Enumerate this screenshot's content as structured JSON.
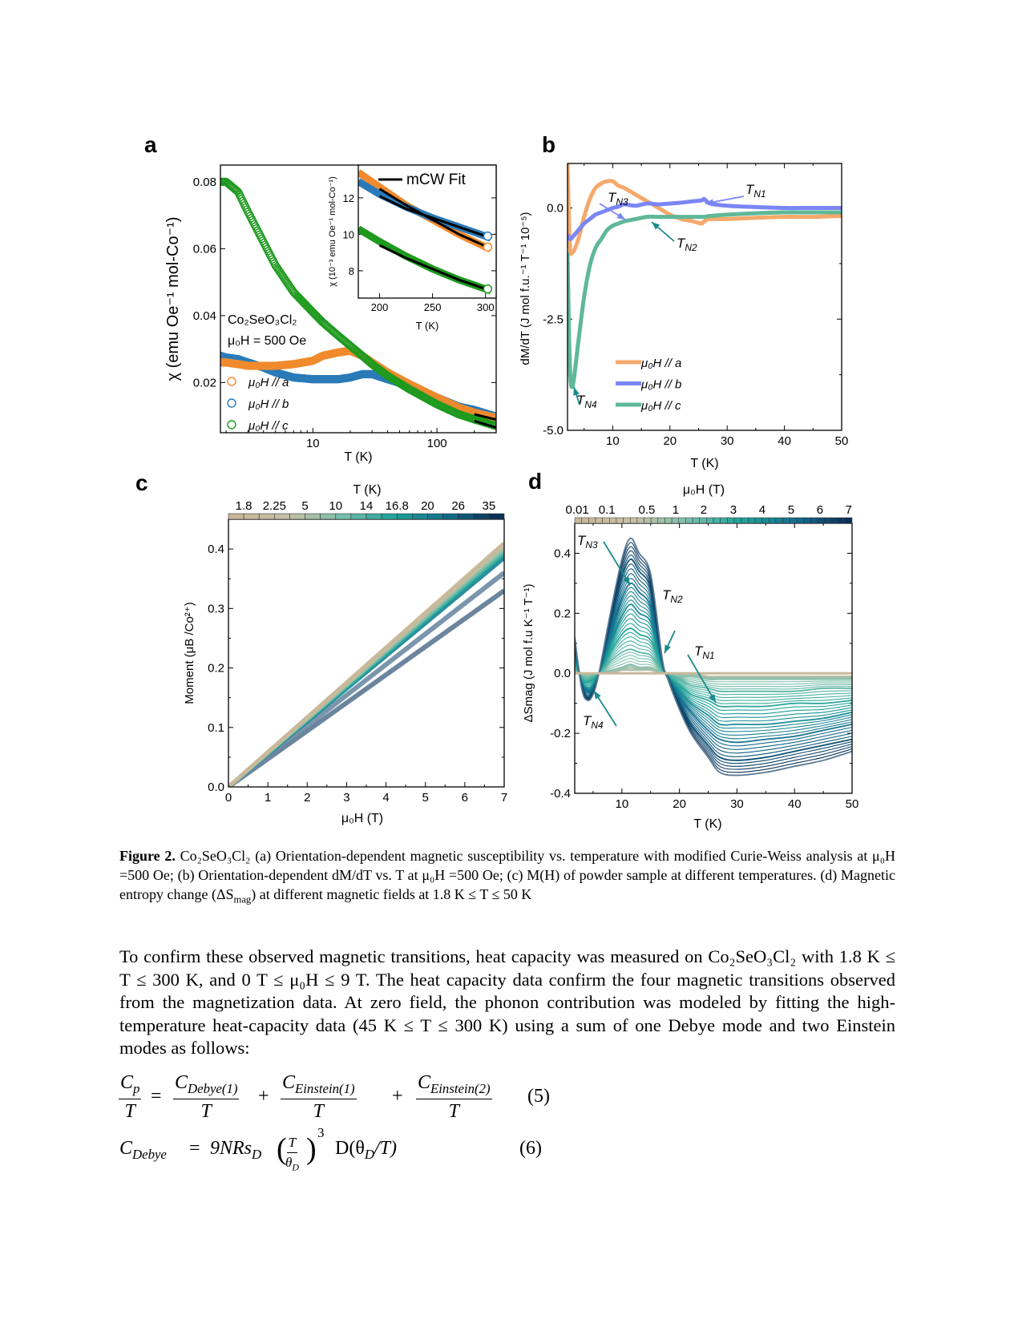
{
  "figure": {
    "panel_labels": [
      "a",
      "b",
      "c",
      "d"
    ],
    "caption": {
      "label": "Figure 2.",
      "text_1": " Co₂SeO₃Cl₂ (a) Orientation-dependent magnetic susceptibility vs. temperature with modified Curie-Weiss analysis at μ₀H =500 Oe; (b) Orientation-dependent dM/dT vs. T at μ₀H =500 Oe; (c) M(H) of powder sample at different temperatures. (d) Magnetic entropy change (ΔS",
      "sub": "mag",
      "text_2": ") at different magnetic fields at 1.8 K ≤ T ≤ 50 K"
    }
  },
  "body": {
    "paragraph": "To confirm these observed magnetic transitions, heat capacity was measured on Co₂SeO₃Cl₂ with 1.8 K ≤ T  ≤ 300 K, and 0 T ≤ μ₀H ≤ 9 T.  The heat capacity data confirm the four magnetic transitions observed from the magnetization data. At zero field, the phonon contribution was modeled by fitting the high-temperature heat-capacity data (45 K ≤ T ≤ 300 K) using a sum of one Debye mode and two Einstein modes as follows:"
  },
  "equations": {
    "eq5": {
      "lhs_num": "C",
      "lhs_num_sub": "p",
      "lhs_den": "T",
      "equals": "=",
      "t1_num": "C",
      "t1_sub": "Debye(1)",
      "t1_den": "T",
      "plus1": "+",
      "t2_num": "C",
      "t2_sub": "Einstein(1)",
      "t2_den": "T",
      "plus2": "+",
      "t3_num": "C",
      "t3_sub": "Einstein(2)",
      "t3_den": "T",
      "number": "(5)"
    },
    "eq6": {
      "lhs": "C",
      "lhs_sub": "Debye",
      "equals": "=",
      "coef": "9NRs",
      "coef_sub": "D",
      "frac_num": "T",
      "frac_den": "θ",
      "frac_den_sub": "D",
      "power": "3",
      "func": "D(θ",
      "func_sub": "D",
      "func_end": "/T)",
      "number": "(6)"
    }
  },
  "chart_data": [
    {
      "panel": "a",
      "type": "scatter",
      "xlabel": "T (K)",
      "ylabel": "χ (emu Oe⁻¹ mol-Co⁻¹)",
      "xscale": "log",
      "xlim": [
        1.8,
        300
      ],
      "ylim": [
        0.005,
        0.085
      ],
      "xticks": [
        10,
        100
      ],
      "xtick_labels": [
        "10",
        "100"
      ],
      "yticks": [
        0.02,
        0.04,
        0.06,
        0.08
      ],
      "ytick_labels": [
        "0.02",
        "0.04",
        "0.06",
        "0.08"
      ],
      "annotations": [
        "Co₂SeO₃Cl₂",
        "μ₀H = 500 Oe"
      ],
      "legend_placement": "bottom-left",
      "x": [
        1.8,
        2,
        2.5,
        3,
        4,
        5,
        7,
        10,
        12,
        16,
        20,
        25,
        30,
        40,
        60,
        100,
        150,
        200,
        300
      ],
      "series": [
        {
          "name": "μ₀H // a",
          "color": "#f08a2c",
          "values": [
            0.026,
            0.026,
            0.0255,
            0.025,
            0.025,
            0.025,
            0.0255,
            0.0265,
            0.028,
            0.029,
            0.0295,
            0.028,
            0.026,
            0.023,
            0.0195,
            0.0155,
            0.0125,
            0.011,
            0.0094
          ]
        },
        {
          "name": "μ₀H // b",
          "color": "#2a7ab8",
          "values": [
            0.028,
            0.0275,
            0.027,
            0.026,
            0.0245,
            0.023,
            0.0215,
            0.021,
            0.021,
            0.021,
            0.0215,
            0.0225,
            0.0225,
            0.021,
            0.019,
            0.0155,
            0.0128,
            0.0118,
            0.0098
          ]
        },
        {
          "name": "μ₀H // c",
          "color": "#1e9a1e",
          "values": [
            0.08,
            0.08,
            0.077,
            0.071,
            0.062,
            0.055,
            0.047,
            0.041,
            0.038,
            0.034,
            0.031,
            0.028,
            0.0255,
            0.022,
            0.018,
            0.0135,
            0.0105,
            0.009,
            0.007
          ]
        }
      ]
    },
    {
      "panel": "a-inset",
      "type": "line",
      "xlabel": "T (K)",
      "ylabel": "χ (10⁻³ emu Oe⁻¹ mol-Co⁻¹)",
      "xlim": [
        180,
        310
      ],
      "ylim": [
        6.5,
        13.8
      ],
      "xticks": [
        200,
        250,
        300
      ],
      "xtick_labels": [
        "200",
        "250",
        "300"
      ],
      "yticks": [
        8,
        10,
        12
      ],
      "ytick_labels": [
        "8",
        "10",
        "12"
      ],
      "legend": "mCW Fit",
      "legend_placement": "top-right",
      "x": [
        180,
        200,
        225,
        250,
        275,
        300,
        305
      ],
      "series": [
        {
          "color": "#f08a2c",
          "values": [
            13.4,
            12.6,
            11.6,
            10.8,
            10.0,
            9.3,
            9.2
          ]
        },
        {
          "color": "#2a7ab8",
          "values": [
            12.9,
            12.2,
            11.5,
            10.9,
            10.4,
            9.9,
            9.8
          ]
        },
        {
          "color": "#1e9a1e",
          "values": [
            10.3,
            9.6,
            8.8,
            8.1,
            7.5,
            7.0,
            6.9
          ]
        }
      ],
      "fit_x": [
        200,
        225,
        250,
        275,
        300
      ],
      "fits": [
        [
          12.5,
          11.6,
          10.8,
          10.0,
          9.35
        ],
        [
          12.1,
          11.4,
          10.9,
          10.4,
          9.9
        ],
        [
          9.4,
          8.7,
          8.1,
          7.5,
          7.0
        ]
      ],
      "fit_color": "#000000"
    },
    {
      "panel": "b",
      "type": "line",
      "xlabel": "T (K)",
      "ylabel": "dM/dT (J mol f.u.⁻¹ T⁻¹ 10⁻⁵)",
      "xlim": [
        2.1,
        50
      ],
      "ylim": [
        -5,
        1
      ],
      "xticks": [
        10,
        20,
        30,
        40,
        50
      ],
      "xtick_labels": [
        "10",
        "20",
        "30",
        "40",
        "50"
      ],
      "yticks": [
        0,
        -2.5,
        -5
      ],
      "ytick_labels": [
        "0.0",
        "-2.5",
        "-5.0"
      ],
      "legend_placement": "bottom-center",
      "annotations": [
        {
          "text": "T",
          "sub": "N1",
          "color": "#7b86f5"
        },
        {
          "text": "T",
          "sub": "N3",
          "color": "#7b86f5"
        },
        {
          "text": "T",
          "sub": "N2",
          "color": "#1a8a8a"
        },
        {
          "text": "T",
          "sub": "N4",
          "color": "#1a8a8a"
        }
      ],
      "x": [
        2.1,
        2.5,
        3,
        4,
        5,
        6,
        7,
        8,
        9,
        10,
        11,
        12,
        14,
        16,
        18,
        20,
        22,
        24,
        25.5,
        26,
        27,
        30,
        35,
        40,
        45,
        50
      ],
      "series": [
        {
          "name": "μ₀H // a",
          "color": "#f4a96b",
          "values": [
            1.0,
            -0.8,
            -1.0,
            -0.7,
            -0.2,
            0.2,
            0.45,
            0.55,
            0.6,
            0.6,
            0.5,
            0.45,
            0.3,
            0.15,
            0.0,
            -0.15,
            -0.25,
            -0.3,
            -0.35,
            -0.3,
            -0.25,
            -0.25,
            -0.22,
            -0.2,
            -0.2,
            -0.18
          ]
        },
        {
          "name": "μ₀H // b",
          "color": "#7b86f5",
          "values": [
            -0.6,
            -0.7,
            -0.65,
            -0.5,
            -0.35,
            -0.25,
            -0.15,
            -0.1,
            -0.05,
            0.0,
            0.03,
            0.08,
            0.05,
            0.1,
            0.08,
            0.1,
            0.12,
            0.15,
            0.17,
            0.2,
            0.1,
            0.05,
            0.02,
            0.0,
            0.0,
            0.0
          ]
        },
        {
          "name": "μ₀H // c",
          "color": "#5fb897",
          "values": [
            -1.0,
            -3.5,
            -4.0,
            -3.0,
            -2.0,
            -1.3,
            -0.9,
            -0.7,
            -0.5,
            -0.4,
            -0.35,
            -0.3,
            -0.25,
            -0.2,
            -0.2,
            -0.2,
            -0.2,
            -0.2,
            -0.2,
            -0.2,
            -0.18,
            -0.15,
            -0.12,
            -0.1,
            -0.1,
            -0.1
          ]
        }
      ]
    },
    {
      "panel": "c",
      "type": "line",
      "xlabel": "μ₀H (T)",
      "ylabel": "Moment (μB /Co²⁺)",
      "xlim": [
        0,
        7
      ],
      "ylim": [
        0,
        0.45
      ],
      "xticks": [
        0,
        1,
        2,
        3,
        4,
        5,
        6,
        7
      ],
      "xtick_labels": [
        "0",
        "1",
        "2",
        "3",
        "4",
        "5",
        "6",
        "7"
      ],
      "yticks": [
        0,
        0.1,
        0.2,
        0.3,
        0.4
      ],
      "ytick_labels": [
        "0.0",
        "0.1",
        "0.2",
        "0.3",
        "0.4"
      ],
      "colorbar_label": "T (K)",
      "colorbar_ticks": [
        "1.8",
        "2.25",
        "5",
        "10",
        "14",
        "16.8",
        "20",
        "26",
        "35"
      ],
      "x": [
        0,
        7
      ],
      "series": [
        {
          "name": "1.8",
          "values": [
            0,
            0.41
          ]
        },
        {
          "name": "2.25",
          "values": [
            0,
            0.408
          ]
        },
        {
          "name": "5",
          "values": [
            0,
            0.405
          ]
        },
        {
          "name": "10",
          "values": [
            0,
            0.4
          ]
        },
        {
          "name": "14",
          "values": [
            0,
            0.395
          ]
        },
        {
          "name": "16.8",
          "values": [
            0,
            0.39
          ]
        },
        {
          "name": "20",
          "values": [
            0,
            0.385
          ]
        },
        {
          "name": "26",
          "values": [
            0,
            0.36
          ]
        },
        {
          "name": "35",
          "values": [
            0,
            0.33
          ]
        }
      ]
    },
    {
      "panel": "d",
      "type": "line",
      "xlabel": "T (K)",
      "ylabel": "ΔSmag (J mol f.u K⁻¹ T⁻¹)",
      "xlim": [
        1.8,
        50
      ],
      "ylim": [
        -0.4,
        0.5
      ],
      "xticks": [
        10,
        20,
        30,
        40,
        50
      ],
      "xtick_labels": [
        "10",
        "20",
        "30",
        "40",
        "50"
      ],
      "yticks": [
        -0.4,
        -0.2,
        0,
        0.2,
        0.4
      ],
      "ytick_labels": [
        "-0.4",
        "-0.2",
        "0.0",
        "0.2",
        "0.4"
      ],
      "colorbar_label": "μ₀H (T)",
      "colorbar_ticks": [
        "0.01",
        "0.1",
        "0.5",
        "1",
        "2",
        "3",
        "4",
        "5",
        "6",
        "7"
      ],
      "annotations": [
        {
          "text": "T",
          "sub": "N3"
        },
        {
          "text": "T",
          "sub": "N2"
        },
        {
          "text": "T",
          "sub": "N1"
        },
        {
          "text": "T",
          "sub": "N4"
        }
      ],
      "annotation_color": "#1a8a8a",
      "x": [
        1.8,
        3,
        4,
        5,
        6,
        8,
        10,
        11.5,
        13,
        15,
        17,
        18,
        20,
        22,
        25,
        27,
        30,
        35,
        40,
        45,
        50
      ],
      "series": [
        {
          "name": "0.01",
          "values": [
            0,
            0,
            0,
            0,
            0,
            0,
            0,
            0,
            0,
            0,
            0,
            0,
            0,
            0,
            0,
            0,
            0,
            0,
            0,
            0,
            0
          ]
        },
        {
          "name": "0.5",
          "values": [
            0,
            0,
            0,
            0,
            0,
            0,
            0.01,
            0.01,
            0.01,
            0.01,
            0,
            0,
            0,
            0,
            -0.01,
            -0.01,
            -0.01,
            -0.01,
            -0.01,
            -0.01,
            -0.01
          ]
        },
        {
          "name": "1",
          "values": [
            0.01,
            0,
            -0.01,
            0,
            0,
            0.01,
            0.02,
            0.03,
            0.02,
            0.02,
            0,
            0,
            -0.01,
            -0.01,
            -0.02,
            -0.02,
            -0.02,
            -0.02,
            -0.02,
            -0.02,
            -0.02
          ]
        },
        {
          "name": "2",
          "values": [
            0.02,
            -0.01,
            -0.02,
            -0.01,
            0,
            0.04,
            0.07,
            0.08,
            0.07,
            0.06,
            0.01,
            0,
            -0.02,
            -0.04,
            -0.05,
            -0.06,
            -0.06,
            -0.06,
            -0.06,
            -0.05,
            -0.05
          ]
        },
        {
          "name": "3",
          "values": [
            0.04,
            -0.02,
            -0.03,
            -0.02,
            0,
            0.07,
            0.13,
            0.15,
            0.13,
            0.11,
            0.02,
            -0.01,
            -0.04,
            -0.07,
            -0.09,
            -0.11,
            -0.11,
            -0.11,
            -0.1,
            -0.1,
            -0.09
          ]
        },
        {
          "name": "4",
          "values": [
            0.06,
            -0.03,
            -0.05,
            -0.04,
            0,
            0.1,
            0.19,
            0.23,
            0.2,
            0.17,
            0.03,
            -0.01,
            -0.06,
            -0.1,
            -0.14,
            -0.17,
            -0.17,
            -0.17,
            -0.16,
            -0.15,
            -0.13
          ]
        },
        {
          "name": "5",
          "values": [
            0.08,
            -0.03,
            -0.06,
            -0.05,
            0,
            0.13,
            0.25,
            0.3,
            0.27,
            0.22,
            0.03,
            -0.01,
            -0.08,
            -0.13,
            -0.19,
            -0.22,
            -0.23,
            -0.22,
            -0.21,
            -0.19,
            -0.17
          ]
        },
        {
          "name": "6",
          "values": [
            0.1,
            -0.04,
            -0.08,
            -0.06,
            0,
            0.17,
            0.32,
            0.38,
            0.34,
            0.28,
            0.04,
            -0.02,
            -0.1,
            -0.17,
            -0.24,
            -0.28,
            -0.29,
            -0.28,
            -0.26,
            -0.24,
            -0.22
          ]
        },
        {
          "name": "7",
          "values": [
            0.12,
            -0.05,
            -0.09,
            -0.07,
            0,
            0.2,
            0.38,
            0.45,
            0.4,
            0.33,
            0.05,
            -0.02,
            -0.12,
            -0.2,
            -0.28,
            -0.33,
            -0.34,
            -0.33,
            -0.31,
            -0.29,
            -0.26
          ]
        }
      ]
    }
  ]
}
